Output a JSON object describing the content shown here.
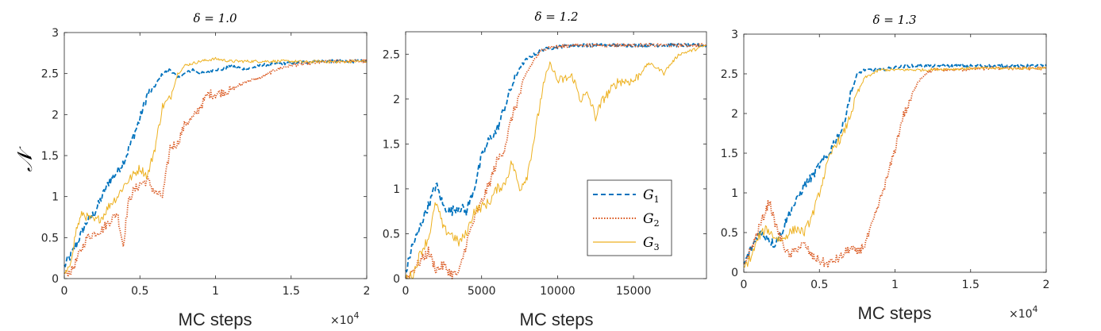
{
  "colors": {
    "G1": "#0072BD",
    "G2": "#D95319",
    "G3": "#EDB120"
  },
  "legend": {
    "placement": "lower-right of middle panel",
    "entries": [
      {
        "main": "G",
        "sub": "1",
        "key": "G1",
        "style": "dashed"
      },
      {
        "main": "G",
        "sub": "2",
        "key": "G2",
        "style": "dotted"
      },
      {
        "main": "G",
        "sub": "3",
        "key": "G3",
        "style": "solid"
      }
    ]
  },
  "chart_data": [
    {
      "type": "line",
      "title": "δ = 1.0",
      "xlabel": "MC steps",
      "ylabel": "𝒩",
      "xlim": [
        0,
        20000
      ],
      "ylim": [
        0,
        3
      ],
      "xticks": [
        0,
        5000,
        10000,
        15000,
        20000
      ],
      "xtick_labels": [
        "0",
        "0.5",
        "1",
        "1.5",
        "2"
      ],
      "x_exponent": "×10",
      "x_exponent_power": "4",
      "yticks": [
        0,
        0.5,
        1,
        1.5,
        2,
        2.5,
        3
      ],
      "ytick_labels": [
        "0",
        "0.5",
        "1",
        "1.5",
        "2",
        "2.5",
        "3"
      ],
      "grid": false,
      "series": [
        {
          "name": "G1",
          "key": "G1",
          "style": "dashed",
          "x": [
            0,
            500,
            1000,
            1500,
            2000,
            2500,
            3000,
            3500,
            4000,
            4500,
            5000,
            5500,
            6000,
            6500,
            7000,
            7500,
            8000,
            8500,
            9000,
            10000,
            10500,
            11000,
            12000,
            13000,
            14000,
            15000,
            16000,
            17000,
            18000,
            19000,
            20000
          ],
          "y": [
            0.15,
            0.3,
            0.5,
            0.7,
            0.8,
            1.0,
            1.2,
            1.3,
            1.45,
            1.7,
            1.95,
            2.25,
            2.35,
            2.5,
            2.55,
            2.45,
            2.5,
            2.55,
            2.5,
            2.55,
            2.55,
            2.6,
            2.55,
            2.6,
            2.62,
            2.63,
            2.64,
            2.65,
            2.65,
            2.65,
            2.65
          ]
        },
        {
          "name": "G2",
          "key": "G2",
          "style": "dotted",
          "x": [
            0,
            500,
            1000,
            1500,
            2000,
            2500,
            3000,
            3500,
            3900,
            4200,
            4500,
            5000,
            5500,
            6000,
            6500,
            7000,
            7500,
            8000,
            8500,
            9000,
            9500,
            10000,
            11000,
            12000,
            13000,
            14000,
            15000,
            16000,
            17000,
            18000,
            19000,
            20000
          ],
          "y": [
            0.05,
            0.1,
            0.3,
            0.5,
            0.55,
            0.6,
            0.7,
            0.8,
            0.4,
            0.9,
            1.05,
            1.15,
            1.2,
            1.05,
            1.0,
            1.6,
            1.65,
            1.9,
            1.95,
            2.1,
            2.25,
            2.25,
            2.3,
            2.4,
            2.45,
            2.55,
            2.6,
            2.62,
            2.64,
            2.65,
            2.65,
            2.65
          ]
        },
        {
          "name": "G3",
          "key": "G3",
          "style": "solid",
          "x": [
            0,
            300,
            800,
            1200,
            1500,
            2000,
            2500,
            3000,
            3500,
            4000,
            4500,
            5000,
            5500,
            6000,
            6500,
            7000,
            7500,
            8000,
            9000,
            10000,
            11000,
            12000,
            13000,
            14000,
            15000,
            16000,
            17000,
            18000,
            19000,
            20000
          ],
          "y": [
            0.05,
            0.1,
            0.6,
            0.8,
            0.75,
            0.7,
            0.75,
            0.9,
            1.0,
            1.15,
            1.25,
            1.35,
            1.25,
            1.6,
            2.1,
            2.2,
            2.5,
            2.6,
            2.65,
            2.68,
            2.65,
            2.65,
            2.65,
            2.65,
            2.65,
            2.64,
            2.65,
            2.64,
            2.65,
            2.65
          ]
        }
      ]
    },
    {
      "type": "line",
      "title": "δ = 1.2",
      "xlabel": "MC steps",
      "xlim": [
        0,
        19800
      ],
      "ylim": [
        0,
        2.75
      ],
      "xticks": [
        0,
        5000,
        10000,
        15000
      ],
      "xtick_labels": [
        "0",
        "5000",
        "10000",
        "15000"
      ],
      "yticks": [
        0,
        0.5,
        1,
        1.5,
        2,
        2.5
      ],
      "ytick_labels": [
        "0",
        "0.5",
        "1",
        "1.5",
        "2",
        "2.5"
      ],
      "grid": false,
      "series": [
        {
          "name": "G1",
          "key": "G1",
          "style": "dashed",
          "x": [
            0,
            400,
            800,
            1200,
            1600,
            2000,
            2500,
            3000,
            3500,
            4000,
            4500,
            5000,
            5500,
            6000,
            6500,
            7000,
            7500,
            8000,
            8500,
            9000,
            10000,
            11000,
            12000,
            13000,
            14000,
            15000,
            16000,
            17000,
            18000,
            19000,
            19800
          ],
          "y": [
            0.05,
            0.35,
            0.5,
            0.7,
            0.85,
            1.05,
            0.8,
            0.75,
            0.8,
            0.75,
            1.0,
            1.35,
            1.55,
            1.65,
            1.9,
            2.15,
            2.35,
            2.45,
            2.5,
            2.55,
            2.58,
            2.6,
            2.6,
            2.6,
            2.6,
            2.6,
            2.6,
            2.6,
            2.6,
            2.6,
            2.6
          ]
        },
        {
          "name": "G2",
          "key": "G2",
          "style": "dotted",
          "x": [
            0,
            500,
            1000,
            1500,
            2000,
            2500,
            3000,
            3500,
            4000,
            4500,
            5000,
            5500,
            6000,
            6500,
            7000,
            7500,
            8000,
            8500,
            9000,
            9500,
            10000,
            11000,
            12000,
            13000,
            14000,
            15000,
            16000,
            17000,
            18000,
            19000,
            19800
          ],
          "y": [
            0.0,
            0.1,
            0.2,
            0.3,
            0.1,
            0.15,
            0.05,
            0.05,
            0.4,
            0.65,
            0.85,
            1.05,
            1.3,
            1.45,
            1.8,
            2.05,
            2.3,
            2.45,
            2.55,
            2.58,
            2.58,
            2.6,
            2.6,
            2.6,
            2.6,
            2.6,
            2.6,
            2.6,
            2.6,
            2.6,
            2.6
          ]
        },
        {
          "name": "G3",
          "key": "G3",
          "style": "solid",
          "x": [
            0,
            500,
            1000,
            1500,
            2000,
            2500,
            3000,
            3500,
            4000,
            4500,
            5000,
            5500,
            6000,
            6500,
            7000,
            7500,
            8000,
            8500,
            9000,
            9500,
            10000,
            11000,
            11500,
            12000,
            12500,
            13000,
            14000,
            15000,
            16000,
            17000,
            18000,
            19000,
            19800
          ],
          "y": [
            0.0,
            0.05,
            0.3,
            0.45,
            0.85,
            0.55,
            0.5,
            0.4,
            0.5,
            0.75,
            0.8,
            0.85,
            1.0,
            1.05,
            1.3,
            1.0,
            1.15,
            1.6,
            2.1,
            2.4,
            2.2,
            2.25,
            2.0,
            2.05,
            1.8,
            2.0,
            2.2,
            2.2,
            2.4,
            2.3,
            2.5,
            2.55,
            2.6
          ]
        }
      ]
    },
    {
      "type": "line",
      "title": "δ = 1.3",
      "xlabel": "MC steps",
      "xlim": [
        0,
        20000
      ],
      "ylim": [
        0,
        3
      ],
      "xticks": [
        0,
        5000,
        10000,
        15000,
        20000
      ],
      "xtick_labels": [
        "0",
        "0.5",
        "1",
        "1.5",
        "2"
      ],
      "x_exponent": "×10",
      "x_exponent_power": "4",
      "yticks": [
        0,
        0.5,
        1,
        1.5,
        2,
        2.5,
        3
      ],
      "ytick_labels": [
        "0",
        "0.5",
        "1",
        "1.5",
        "2",
        "2.5",
        "3"
      ],
      "grid": false,
      "series": [
        {
          "name": "G1",
          "key": "G1",
          "style": "dashed",
          "x": [
            0,
            500,
            1000,
            1500,
            2000,
            2500,
            3000,
            3500,
            4000,
            4500,
            5000,
            5500,
            6000,
            6500,
            7000,
            7500,
            8000,
            9000,
            10000,
            11000,
            12000,
            13000,
            14000,
            15000,
            16000,
            17000,
            18000,
            19000,
            20000
          ],
          "y": [
            0.1,
            0.3,
            0.5,
            0.45,
            0.35,
            0.5,
            0.75,
            0.9,
            1.1,
            1.2,
            1.35,
            1.45,
            1.65,
            1.8,
            2.2,
            2.5,
            2.55,
            2.55,
            2.58,
            2.6,
            2.6,
            2.6,
            2.6,
            2.6,
            2.6,
            2.6,
            2.6,
            2.6,
            2.6
          ]
        },
        {
          "name": "G2",
          "key": "G2",
          "style": "dotted",
          "x": [
            0,
            500,
            1000,
            1500,
            1700,
            2000,
            2500,
            3000,
            3500,
            4000,
            4500,
            5000,
            5500,
            6000,
            6500,
            7000,
            7500,
            8000,
            8500,
            9000,
            9500,
            10000,
            10500,
            11000,
            11500,
            12000,
            12500,
            13000,
            14000,
            15000,
            16000,
            17000,
            18000,
            19000,
            20000
          ],
          "y": [
            0.1,
            0.3,
            0.55,
            0.8,
            0.9,
            0.65,
            0.4,
            0.2,
            0.3,
            0.35,
            0.2,
            0.15,
            0.1,
            0.15,
            0.2,
            0.3,
            0.25,
            0.35,
            0.6,
            0.9,
            1.2,
            1.55,
            1.95,
            2.15,
            2.4,
            2.5,
            2.55,
            2.55,
            2.55,
            2.56,
            2.57,
            2.57,
            2.57,
            2.57,
            2.57
          ]
        },
        {
          "name": "G3",
          "key": "G3",
          "style": "solid",
          "x": [
            0,
            500,
            1000,
            1500,
            2000,
            2500,
            3000,
            3500,
            4000,
            4500,
            5000,
            5500,
            6000,
            6500,
            7000,
            7500,
            8000,
            8500,
            9000,
            10000,
            11000,
            12000,
            13000,
            14000,
            15000,
            16000,
            17000,
            18000,
            19000,
            20000
          ],
          "y": [
            0.05,
            0.2,
            0.45,
            0.55,
            0.45,
            0.4,
            0.5,
            0.55,
            0.5,
            0.7,
            1.0,
            1.35,
            1.6,
            1.7,
            1.95,
            2.25,
            2.45,
            2.5,
            2.55,
            2.55,
            2.55,
            2.55,
            2.56,
            2.56,
            2.57,
            2.57,
            2.57,
            2.57,
            2.57,
            2.57
          ]
        }
      ]
    }
  ]
}
